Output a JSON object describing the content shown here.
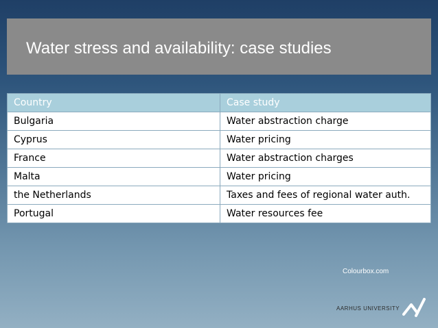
{
  "slide": {
    "title": "Water stress and availability: case studies",
    "credit": "Colourbox.com",
    "university_name": "AARHUS UNIVERSITY"
  },
  "table": {
    "headers": [
      "Country",
      "Case study"
    ],
    "rows": [
      [
        "Bulgaria",
        "Water abstraction charge"
      ],
      [
        "Cyprus",
        "Water pricing"
      ],
      [
        "France",
        "Water abstraction charges"
      ],
      [
        "Malta",
        "Water pricing"
      ],
      [
        "the Netherlands",
        "Taxes and fees of regional water auth."
      ],
      [
        "Portugal",
        "Water resources fee"
      ]
    ]
  },
  "icons": {
    "logo": "university-logo-icon"
  },
  "colors": {
    "title_bar": "#8a8a8a",
    "table_header": "#a9cfdc",
    "table_border": "#8aa9bd"
  }
}
